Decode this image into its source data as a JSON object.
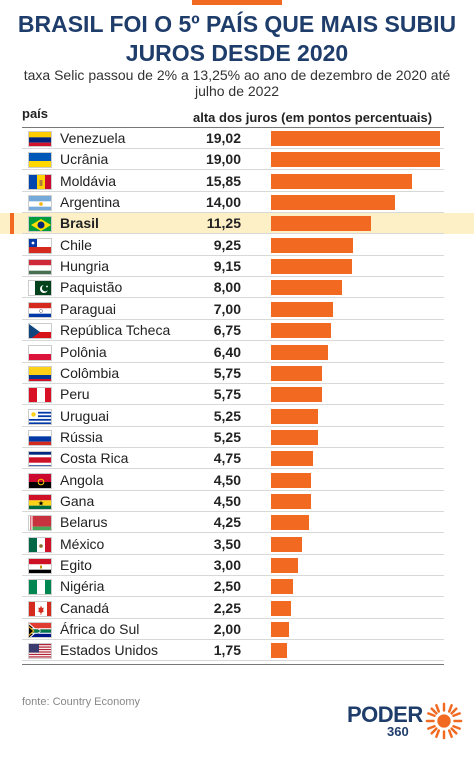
{
  "title_line1": "BRASIL FOI O 5º PAÍS QUE MAIS SUBIU",
  "title_line2": "JUROS DESDE 2020",
  "subtitle": "taxa Selic passou de 2% a 13,25% ao ano de dezembro de 2020 até julho de 2022",
  "source": "fonte: Country Economy",
  "logo": {
    "text": "PODER",
    "number": "360"
  },
  "colors": {
    "bar": "#f26a21",
    "title": "#1e3d6b",
    "highlight": "#fdf0c6"
  },
  "chart_data": {
    "type": "bar",
    "orientation": "horizontal",
    "xlabel": "país",
    "ylabel": "alta dos juros (em pontos percentuais)",
    "highlight": "Brasil",
    "categories": [
      "Venezuela",
      "Ucrânia",
      "Moldávia",
      "Argentina",
      "Brasil",
      "Chile",
      "Hungria",
      "Paquistão",
      "Paraguai",
      "República Tcheca",
      "Polônia",
      "Colômbia",
      "Peru",
      "Uruguai",
      "Rússia",
      "Costa Rica",
      "Angola",
      "Gana",
      "Belarus",
      "México",
      "Egito",
      "Nigéria",
      "Canadá",
      "África do Sul",
      "Estados Unidos"
    ],
    "values": [
      19.02,
      19.0,
      15.85,
      14.0,
      11.25,
      9.25,
      9.15,
      8.0,
      7.0,
      6.75,
      6.4,
      5.75,
      5.75,
      5.25,
      5.25,
      4.75,
      4.5,
      4.5,
      4.25,
      3.5,
      3.0,
      2.5,
      2.25,
      2.0,
      1.75
    ],
    "value_labels": [
      "19,02",
      "19,00",
      "15,85",
      "14,00",
      "11,25",
      "9,25",
      "9,15",
      "8,00",
      "7,00",
      "6,75",
      "6,40",
      "5,75",
      "5,75",
      "5,25",
      "5,25",
      "4,75",
      "4,50",
      "4,50",
      "4,25",
      "3,50",
      "3,00",
      "2,50",
      "2,25",
      "2,00",
      "1,75"
    ],
    "flags": [
      "venezuela-flag-icon",
      "ukraine-flag-icon",
      "moldova-flag-icon",
      "argentina-flag-icon",
      "brazil-flag-icon",
      "chile-flag-icon",
      "hungary-flag-icon",
      "pakistan-flag-icon",
      "paraguay-flag-icon",
      "czech-republic-flag-icon",
      "poland-flag-icon",
      "colombia-flag-icon",
      "peru-flag-icon",
      "uruguay-flag-icon",
      "russia-flag-icon",
      "costa-rica-flag-icon",
      "angola-flag-icon",
      "ghana-flag-icon",
      "belarus-flag-icon",
      "mexico-flag-icon",
      "egypt-flag-icon",
      "nigeria-flag-icon",
      "canada-flag-icon",
      "south-africa-flag-icon",
      "united-states-flag-icon"
    ]
  }
}
